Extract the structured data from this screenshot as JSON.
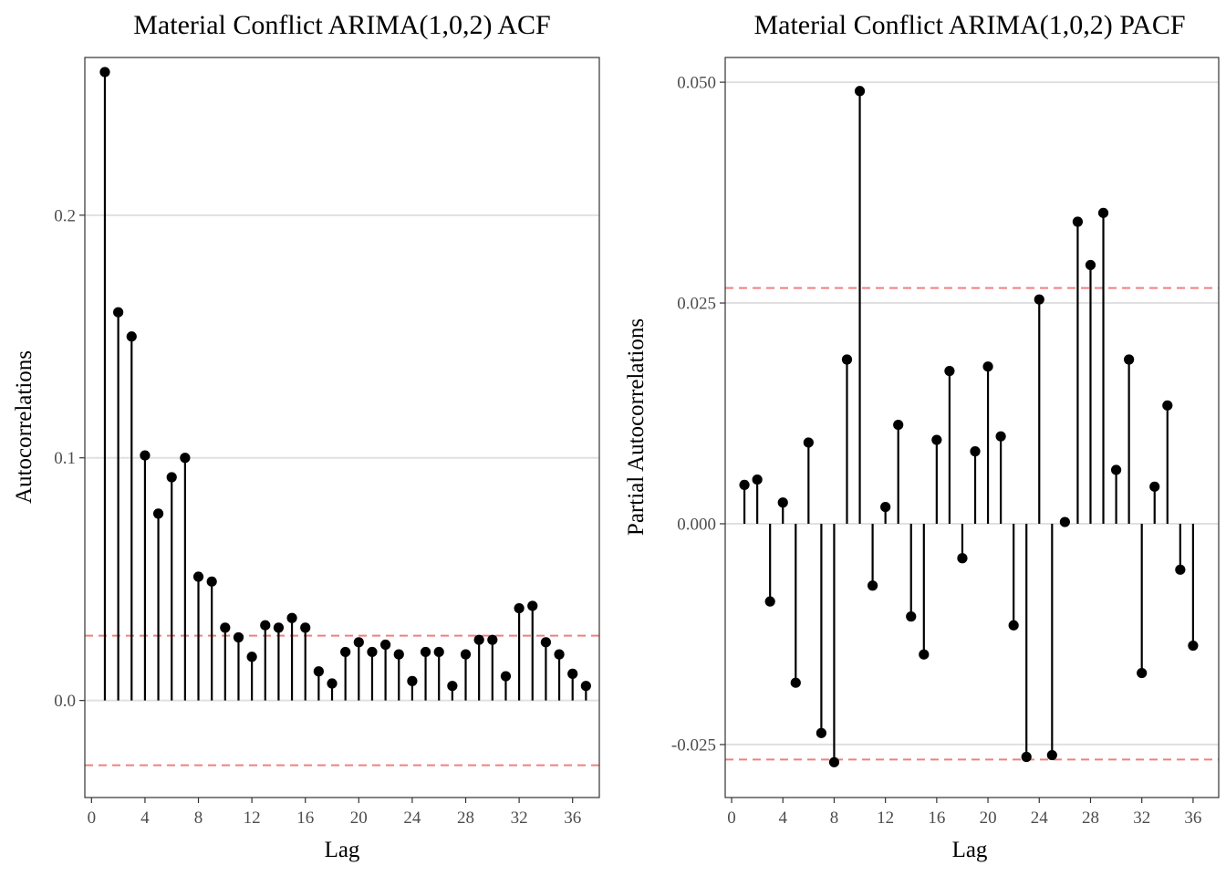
{
  "chart_data": [
    {
      "type": "lollipop",
      "title": "Material Conflict ARIMA(1,0,2) ACF",
      "xlabel": "Lag",
      "ylabel": "Autocorrelations",
      "xlim": [
        -0.5,
        38
      ],
      "ylim": [
        -0.04,
        0.265
      ],
      "xticks": [
        0,
        4,
        8,
        12,
        16,
        20,
        24,
        28,
        32,
        36
      ],
      "xtick_labels": [
        "0",
        "4",
        "8",
        "12",
        "16",
        "20",
        "24",
        "28",
        "32",
        "36"
      ],
      "yticks": [
        0.0,
        0.1,
        0.2
      ],
      "ytick_labels": [
        "0.0",
        "0.1",
        "0.2"
      ],
      "confidence_bounds": [
        0.0267,
        -0.0267
      ],
      "x": [
        1,
        2,
        3,
        4,
        5,
        6,
        7,
        8,
        9,
        10,
        11,
        12,
        13,
        14,
        15,
        16,
        17,
        18,
        19,
        20,
        21,
        22,
        23,
        24,
        25,
        26,
        27,
        28,
        29,
        30,
        31,
        32,
        33,
        34,
        35,
        36,
        37
      ],
      "values": [
        0.259,
        0.16,
        0.15,
        0.101,
        0.077,
        0.092,
        0.1,
        0.051,
        0.049,
        0.03,
        0.026,
        0.018,
        0.031,
        0.03,
        0.034,
        0.03,
        0.012,
        0.007,
        0.02,
        0.024,
        0.02,
        0.023,
        0.019,
        0.008,
        0.02,
        0.02,
        0.006,
        0.019,
        0.025,
        0.025,
        0.01,
        0.038,
        0.039,
        0.024,
        0.019,
        0.011,
        0.006
      ],
      "grid": true
    },
    {
      "type": "lollipop",
      "title": "Material Conflict ARIMA(1,0,2) PACF",
      "xlabel": "Lag",
      "ylabel": "Partial Autocorrelations",
      "xlim": [
        -0.5,
        38
      ],
      "ylim": [
        -0.031,
        0.0528
      ],
      "xticks": [
        0,
        4,
        8,
        12,
        16,
        20,
        24,
        28,
        32,
        36
      ],
      "xtick_labels": [
        "0",
        "4",
        "8",
        "12",
        "16",
        "20",
        "24",
        "28",
        "32",
        "36"
      ],
      "yticks": [
        -0.025,
        0.0,
        0.025,
        0.05
      ],
      "ytick_labels": [
        "-0.025",
        "0.000",
        "0.025",
        "0.050"
      ],
      "confidence_bounds": [
        0.0267,
        -0.0267
      ],
      "x": [
        1,
        2,
        3,
        4,
        5,
        6,
        7,
        8,
        9,
        10,
        11,
        12,
        13,
        14,
        15,
        16,
        17,
        18,
        19,
        20,
        21,
        22,
        23,
        24,
        25,
        26,
        27,
        28,
        29,
        30,
        31,
        32,
        33,
        34,
        35,
        36
      ],
      "values": [
        0.0044,
        0.005,
        -0.0088,
        0.0024,
        -0.018,
        0.0092,
        -0.0237,
        -0.027,
        0.0186,
        0.049,
        -0.007,
        0.0019,
        0.0112,
        -0.0105,
        -0.0148,
        0.0095,
        0.0173,
        -0.0039,
        0.0082,
        0.0178,
        0.0099,
        -0.0115,
        -0.0264,
        0.0254,
        -0.0262,
        0.0002,
        0.0342,
        0.0293,
        0.0352,
        0.0061,
        0.0186,
        -0.0169,
        0.0042,
        0.0134,
        -0.0052,
        -0.0138
      ],
      "grid": true
    }
  ]
}
